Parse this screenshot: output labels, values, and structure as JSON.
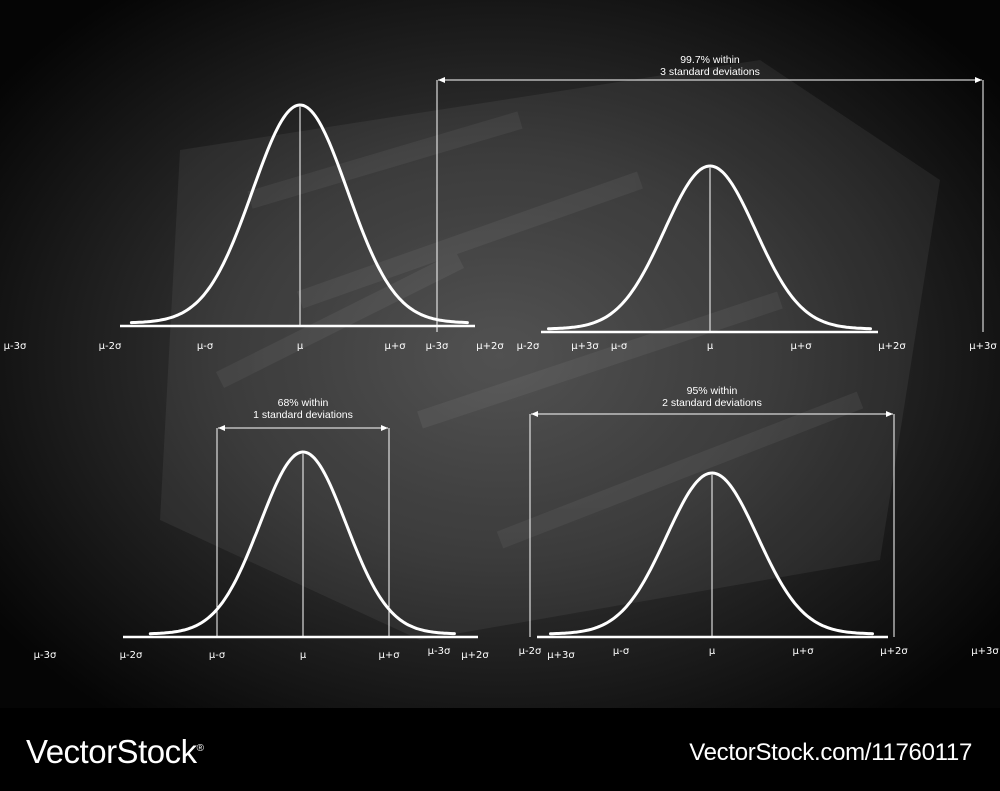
{
  "tick_labels": [
    "μ-3σ",
    "μ-2σ",
    "μ-σ",
    "μ",
    "μ+σ",
    "μ+2σ",
    "μ+3σ"
  ],
  "panels": [
    {
      "id": "basic",
      "annotation": null
    },
    {
      "id": "three-sigma",
      "annotation": {
        "line1": "99.7% within",
        "line2": "3 standard deviations",
        "k": 3
      }
    },
    {
      "id": "one-sigma",
      "annotation": {
        "line1": "68% within",
        "line2": "1 standard deviations",
        "k": 1
      }
    },
    {
      "id": "two-sigma",
      "annotation": {
        "line1": "95% within",
        "line2": "2 standard deviations",
        "k": 2
      }
    }
  ],
  "footer": {
    "brand": "VectorStock",
    "brand_mark": "®",
    "url": "VectorStock.com/11760117"
  },
  "colors": {
    "chalk": "#ffffff",
    "board": "#333333",
    "footer": "#000000"
  }
}
